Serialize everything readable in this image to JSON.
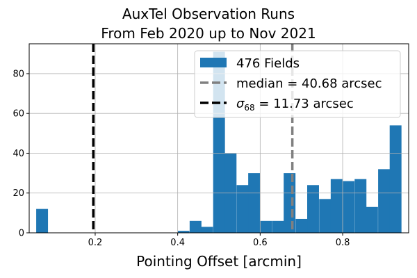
{
  "chart_data": {
    "type": "bar",
    "title_line1": "AuxTel Observation Runs",
    "title_line2": "From Feb 2020 up to Nov 2021",
    "xlabel": "Pointing Offset [arcmin]",
    "ylabel": "",
    "xlim": [
      0.04,
      0.96
    ],
    "ylim": [
      0,
      95
    ],
    "xticks": [
      0.2,
      0.4,
      0.6,
      0.8
    ],
    "xtick_labels": [
      "0.2",
      "0.4",
      "0.6",
      "0.8"
    ],
    "yticks": [
      0,
      20,
      40,
      60,
      80
    ],
    "ytick_labels": [
      "0",
      "20",
      "40",
      "60",
      "80"
    ],
    "grid": true,
    "bin_width": 0.0286,
    "bins": [
      {
        "x": 0.057,
        "count": 12
      },
      {
        "x": 0.4,
        "count": 1
      },
      {
        "x": 0.429,
        "count": 6
      },
      {
        "x": 0.457,
        "count": 3
      },
      {
        "x": 0.486,
        "count": 91
      },
      {
        "x": 0.514,
        "count": 40
      },
      {
        "x": 0.543,
        "count": 24
      },
      {
        "x": 0.571,
        "count": 30
      },
      {
        "x": 0.6,
        "count": 6
      },
      {
        "x": 0.629,
        "count": 6
      },
      {
        "x": 0.657,
        "count": 30
      },
      {
        "x": 0.686,
        "count": 7
      },
      {
        "x": 0.714,
        "count": 24
      },
      {
        "x": 0.743,
        "count": 17
      },
      {
        "x": 0.771,
        "count": 27
      },
      {
        "x": 0.8,
        "count": 26
      },
      {
        "x": 0.829,
        "count": 27
      },
      {
        "x": 0.857,
        "count": 13
      },
      {
        "x": 0.886,
        "count": 32
      },
      {
        "x": 0.914,
        "count": 54
      }
    ],
    "median_line": {
      "x": 0.678,
      "color": "#808080",
      "label": "median = 40.68 arcsec"
    },
    "sigma_line": {
      "x": 0.1955,
      "color": "#000000",
      "label_prefix": "σ",
      "label_sub": "68",
      "label_suffix": " = 11.73 arcsec"
    },
    "legend": {
      "placement": "top-right",
      "hist_label": "476 Fields"
    },
    "colors": {
      "bars": "#1f77b4"
    }
  }
}
